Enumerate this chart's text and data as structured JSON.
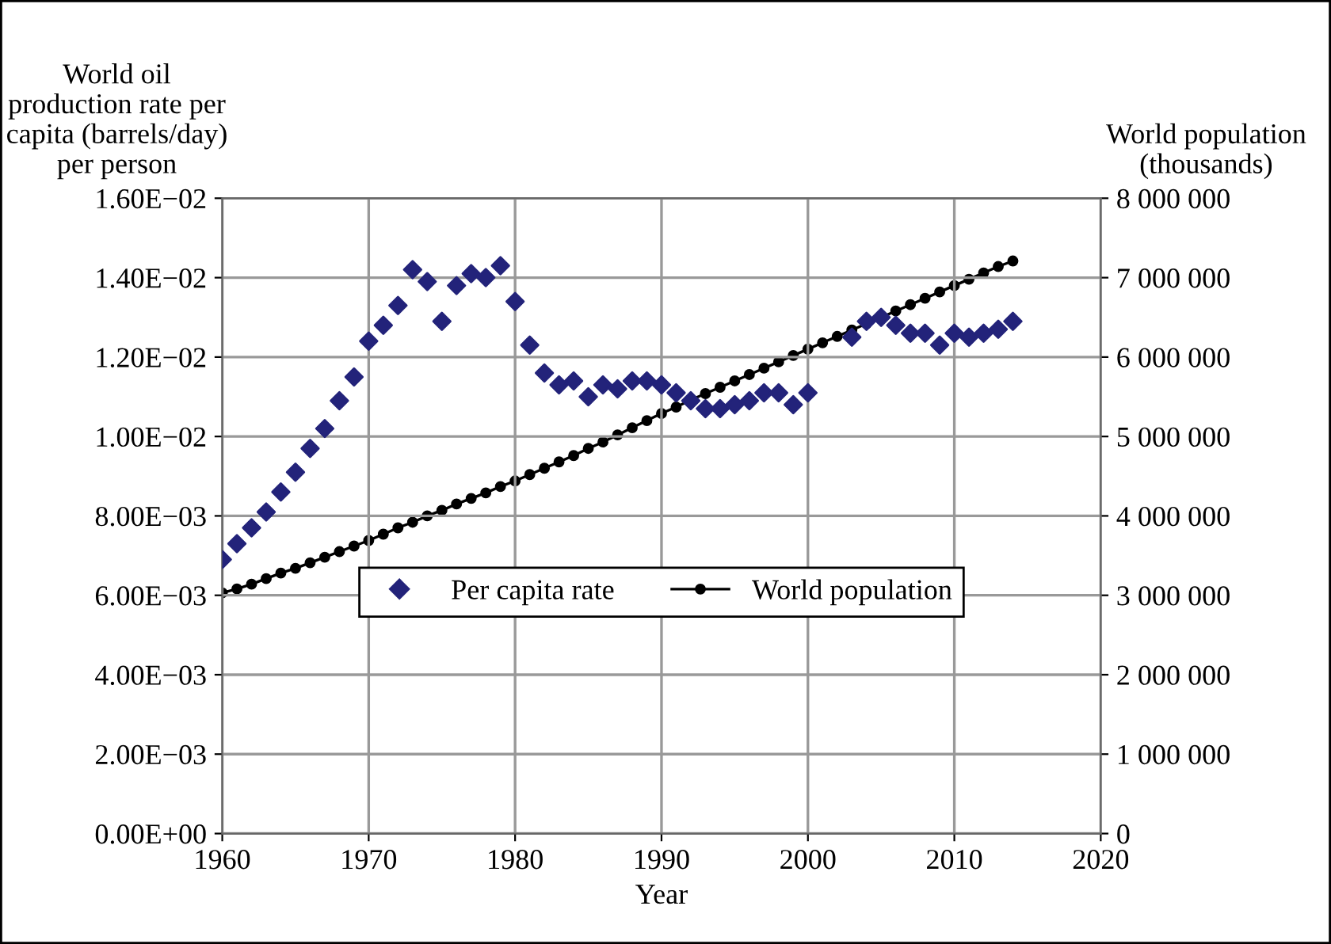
{
  "chart_data": {
    "type": "scatter",
    "xlabel": "Year",
    "ylabel": "World oil\nproduction rate per\ncapita (barrels/day)\nper person",
    "y2label": "World population\n(thousands)",
    "xlim": [
      1960,
      2020
    ],
    "xticks": [
      1960,
      1970,
      1980,
      1990,
      2000,
      2010,
      2020
    ],
    "ylim": [
      0,
      0.016
    ],
    "yticks": [
      {
        "value": 0,
        "label": "0.00E+00"
      },
      {
        "value": 0.002,
        "label": "2.00E−03"
      },
      {
        "value": 0.004,
        "label": "4.00E−03"
      },
      {
        "value": 0.006,
        "label": "6.00E−03"
      },
      {
        "value": 0.008,
        "label": "8.00E−03"
      },
      {
        "value": 0.01,
        "label": "1.00E−02"
      },
      {
        "value": 0.012,
        "label": "1.20E−02"
      },
      {
        "value": 0.014,
        "label": "1.40E−02"
      },
      {
        "value": 0.016,
        "label": "1.60E−02"
      }
    ],
    "y2lim": [
      0,
      8000000
    ],
    "y2ticks": [
      0,
      {
        "value": 1000000,
        "label": "1 000 000"
      },
      {
        "value": 2000000,
        "label": "2 000 000"
      },
      {
        "value": 3000000,
        "label": "3 000 000"
      },
      {
        "value": 4000000,
        "label": "4 000 000"
      },
      {
        "value": 5000000,
        "label": "5 000 000"
      },
      {
        "value": 6000000,
        "label": "6 000 000"
      },
      {
        "value": 7000000,
        "label": "7 000 000"
      },
      {
        "value": 8000000,
        "label": "8 000 000"
      }
    ],
    "grid": true,
    "legend": "center",
    "series": [
      {
        "name": "Per capita rate",
        "marker": "diamond",
        "color": "#23237a",
        "x": [
          1960,
          1961,
          1962,
          1963,
          1964,
          1965,
          1966,
          1967,
          1968,
          1969,
          1970,
          1971,
          1972,
          1973,
          1974,
          1975,
          1976,
          1977,
          1978,
          1979,
          1980,
          1981,
          1982,
          1983,
          1984,
          1985,
          1986,
          1987,
          1988,
          1989,
          1990,
          1991,
          1992,
          1993,
          1994,
          1995,
          1996,
          1997,
          1998,
          1999,
          2000,
          2003,
          2004,
          2005,
          2006,
          2007,
          2008,
          2009,
          2010,
          2011,
          2012,
          2013,
          2014
        ],
        "values": [
          0.0069,
          0.0073,
          0.0077,
          0.0081,
          0.0086,
          0.0091,
          0.0097,
          0.0102,
          0.0109,
          0.0115,
          0.0124,
          0.0128,
          0.0133,
          0.0142,
          0.0139,
          0.0129,
          0.0138,
          0.0141,
          0.014,
          0.0143,
          0.0134,
          0.0123,
          0.0116,
          0.0113,
          0.0114,
          0.011,
          0.0113,
          0.0112,
          0.0114,
          0.0114,
          0.0113,
          0.0111,
          0.0109,
          0.0107,
          0.0107,
          0.0108,
          0.0109,
          0.0111,
          0.0111,
          0.0108,
          0.0111,
          0.0125,
          0.0129,
          0.013,
          0.0128,
          0.0126,
          0.0126,
          0.0123,
          0.0126,
          0.0125,
          0.0126,
          0.0127,
          0.0129
        ]
      },
      {
        "name": "World population",
        "type": "line",
        "axis": "y2",
        "marker": "circle",
        "line_style": "solid",
        "color": "#000000",
        "x": [
          1960,
          1961,
          1962,
          1963,
          1964,
          1965,
          1966,
          1967,
          1968,
          1969,
          1970,
          1971,
          1972,
          1973,
          1974,
          1975,
          1976,
          1977,
          1978,
          1979,
          1980,
          1981,
          1982,
          1983,
          1984,
          1985,
          1986,
          1987,
          1988,
          1989,
          1990,
          1991,
          1992,
          1993,
          1994,
          1995,
          1996,
          1997,
          1998,
          1999,
          2000,
          2001,
          2002,
          2003,
          2004,
          2005,
          2006,
          2007,
          2008,
          2009,
          2010,
          2011,
          2012,
          2013,
          2014
        ],
        "values": [
          3030000,
          3080000,
          3140000,
          3210000,
          3280000,
          3340000,
          3410000,
          3480000,
          3550000,
          3620000,
          3690000,
          3770000,
          3850000,
          3920000,
          4000000,
          4070000,
          4150000,
          4220000,
          4290000,
          4370000,
          4440000,
          4520000,
          4600000,
          4680000,
          4760000,
          4850000,
          4930000,
          5020000,
          5110000,
          5200000,
          5290000,
          5370000,
          5460000,
          5540000,
          5620000,
          5700000,
          5780000,
          5860000,
          5940000,
          6020000,
          6100000,
          6180000,
          6260000,
          6340000,
          6420000,
          6500000,
          6580000,
          6660000,
          6740000,
          6820000,
          6900000,
          6980000,
          7060000,
          7140000,
          7210000
        ]
      }
    ]
  }
}
